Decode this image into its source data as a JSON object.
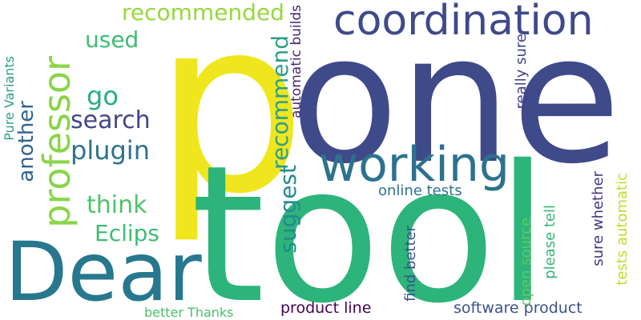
{
  "words": [
    {
      "text": "p",
      "color": "#f0e61e"
    },
    {
      "text": "one",
      "color": "#3f4a8a"
    },
    {
      "text": "tool",
      "color": "#2db47b"
    },
    {
      "text": "Dear",
      "color": "#27788e"
    },
    {
      "text": "coordination",
      "color": "#3f4a8a"
    },
    {
      "text": "working",
      "color": "#2c728e"
    },
    {
      "text": "professor",
      "color": "#89d548"
    },
    {
      "text": "recommended",
      "color": "#96d83c"
    },
    {
      "text": "used",
      "color": "#3fbc73"
    },
    {
      "text": "go",
      "color": "#28ae80"
    },
    {
      "text": "search",
      "color": "#404688"
    },
    {
      "text": "plugin",
      "color": "#2c728e"
    },
    {
      "text": "think",
      "color": "#4ec36b"
    },
    {
      "text": "Eclips",
      "color": "#3fbc73"
    },
    {
      "text": "another",
      "color": "#33638d"
    },
    {
      "text": "recommend",
      "color": "#2c9f88"
    },
    {
      "text": "suggest",
      "color": "#238a8d"
    },
    {
      "text": "automatic builds",
      "color": "#482475"
    },
    {
      "text": "online tests",
      "color": "#2c728e"
    },
    {
      "text": "really sure",
      "color": "#424185"
    },
    {
      "text": "please tell",
      "color": "#35b779"
    },
    {
      "text": "sure whether",
      "color": "#46337e"
    },
    {
      "text": "tests automatic",
      "color": "#bddf26"
    },
    {
      "text": "open source",
      "color": "#5ec962"
    },
    {
      "text": "find better",
      "color": "#3b528b"
    },
    {
      "text": "Pure Variants",
      "color": "#2d9c89"
    },
    {
      "text": "better Thanks",
      "color": "#4ac16d"
    },
    {
      "text": "product line",
      "color": "#440154"
    },
    {
      "text": "software product",
      "color": "#3b528b"
    }
  ]
}
